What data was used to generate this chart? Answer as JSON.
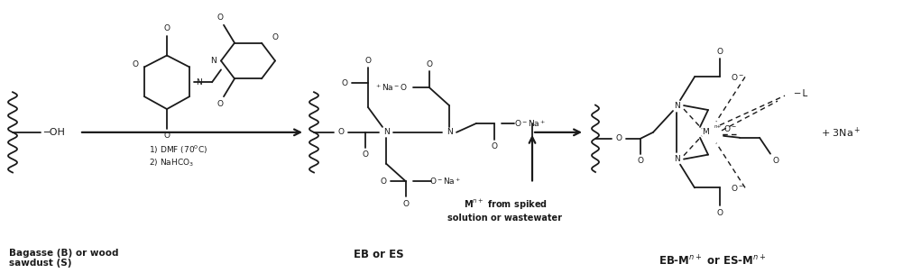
{
  "bg_color": "#ffffff",
  "line_color": "#1a1a1a",
  "fig_width": 10.11,
  "fig_height": 3.03,
  "dpi": 100,
  "label1": "Bagasse (B) or wood\nsawdust (S)",
  "label2": "EB or ES",
  "label3": "M$^{n+}$ from spiked\nsolution or wastewater",
  "label4": "EB-M$^{n+}$ or ES-M$^{n+}$",
  "reaction_cond1": "1) DMF (70$^0$C)",
  "reaction_cond2": "2) NaHCO$_3$",
  "plus_3na": "+ 3Na$^+$",
  "ligand_L": "L"
}
